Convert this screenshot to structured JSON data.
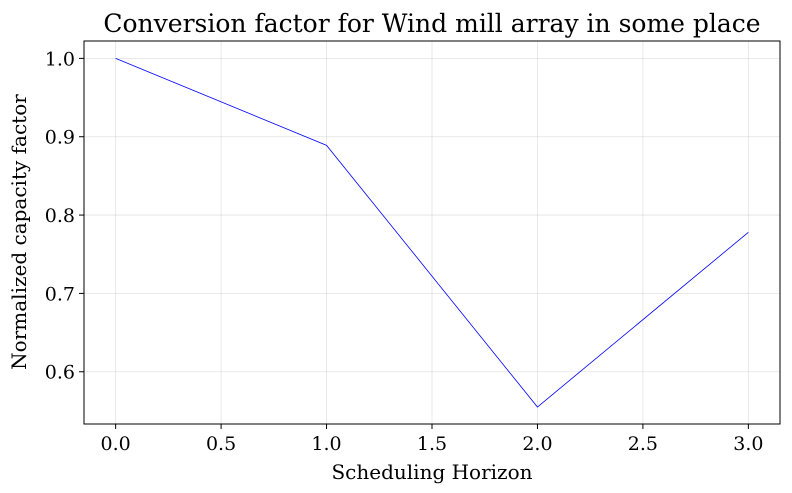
{
  "chart_data": {
    "type": "line",
    "title": "Conversion factor for Wind mill array in some place",
    "xlabel": "Scheduling Horizon",
    "ylabel": "Normalized capacity factor",
    "x": [
      0,
      1,
      2,
      3
    ],
    "series": [
      {
        "values": [
          1.0,
          0.889,
          0.555,
          0.778
        ],
        "color": "#0000ff"
      }
    ],
    "xlim": [
      -0.15,
      3.15
    ],
    "ylim": [
      0.5333,
      1.0222
    ],
    "xticks": [
      0.0,
      0.5,
      1.0,
      1.5,
      2.0,
      2.5,
      3.0
    ],
    "xtick_labels": [
      "0.0",
      "0.5",
      "1.0",
      "1.5",
      "2.0",
      "2.5",
      "3.0"
    ],
    "yticks": [
      0.6,
      0.7,
      0.8,
      0.9,
      1.0
    ],
    "ytick_labels": [
      "0.6",
      "0.7",
      "0.8",
      "0.9",
      "1.0"
    ],
    "grid": true,
    "legend": "none"
  }
}
